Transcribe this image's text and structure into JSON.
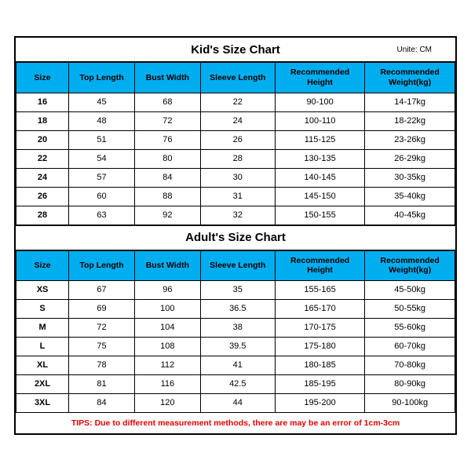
{
  "kids": {
    "title": "Kid's Size Chart",
    "unit": "Unite: CM",
    "columns": [
      "Size",
      "Top Length",
      "Bust Width",
      "Sleeve Length",
      "Recommended Height",
      "Recommended Weight(kg)"
    ],
    "rows": [
      [
        "16",
        "45",
        "68",
        "22",
        "90-100",
        "14-17kg"
      ],
      [
        "18",
        "48",
        "72",
        "24",
        "100-110",
        "18-22kg"
      ],
      [
        "20",
        "51",
        "76",
        "26",
        "115-125",
        "23-26kg"
      ],
      [
        "22",
        "54",
        "80",
        "28",
        "130-135",
        "26-29kg"
      ],
      [
        "24",
        "57",
        "84",
        "30",
        "140-145",
        "30-35kg"
      ],
      [
        "26",
        "60",
        "88",
        "31",
        "145-150",
        "35-40kg"
      ],
      [
        "28",
        "63",
        "92",
        "32",
        "150-155",
        "40-45kg"
      ]
    ]
  },
  "adults": {
    "title": "Adult's Size Chart",
    "columns": [
      "Size",
      "Top Length",
      "Bust Width",
      "Sleeve Length",
      "Recommended Height",
      "Recommended Weight(kg)"
    ],
    "rows": [
      [
        "XS",
        "67",
        "96",
        "35",
        "155-165",
        "45-50kg"
      ],
      [
        "S",
        "69",
        "100",
        "36.5",
        "165-170",
        "50-55kg"
      ],
      [
        "M",
        "72",
        "104",
        "38",
        "170-175",
        "55-60kg"
      ],
      [
        "L",
        "75",
        "108",
        "39.5",
        "175-180",
        "60-70kg"
      ],
      [
        "XL",
        "78",
        "112",
        "41",
        "180-185",
        "70-80kg"
      ],
      [
        "2XL",
        "81",
        "116",
        "42.5",
        "185-195",
        "80-90kg"
      ],
      [
        "3XL",
        "84",
        "120",
        "44",
        "195-200",
        "90-100kg"
      ]
    ]
  },
  "tips": "TIPS: Due to different measurement methods, there are may be an error of 1cm-3cm",
  "style": {
    "header_bg": "#00aeef",
    "border_color": "#000000",
    "tips_color": "#e60000",
    "font_family": "Arial",
    "title_fontsize": 15,
    "header_fontsize": 10.5,
    "cell_fontsize": 11,
    "tips_fontsize": 10.5
  }
}
